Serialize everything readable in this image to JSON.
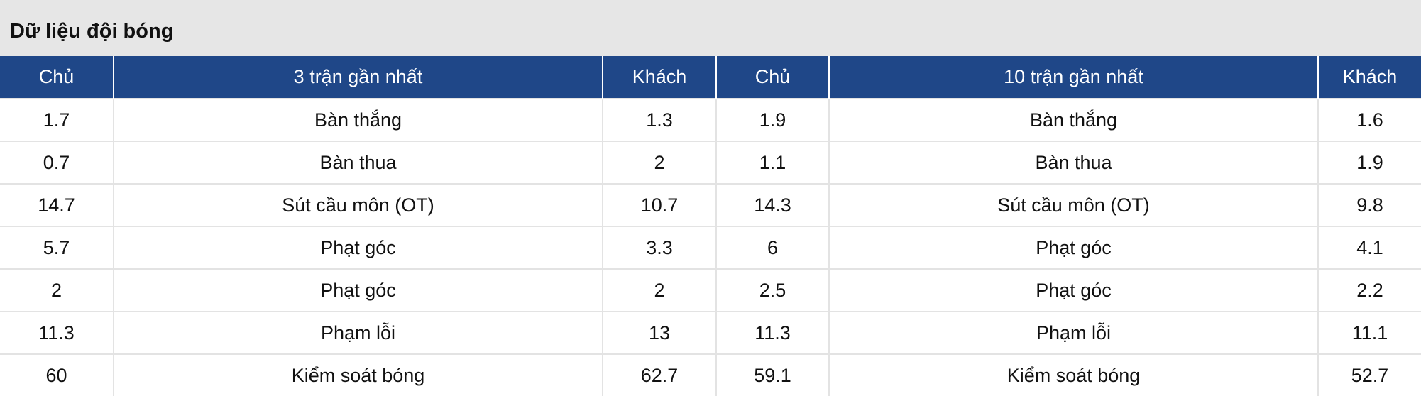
{
  "title": "Dữ liệu đội bóng",
  "headers": [
    "Chủ",
    "3 trận gần nhất",
    "Khách",
    "Chủ",
    "10 trận gần nhất",
    "Khách"
  ],
  "rows": [
    [
      "1.7",
      "Bàn thắng",
      "1.3",
      "1.9",
      "Bàn thắng",
      "1.6"
    ],
    [
      "0.7",
      "Bàn thua",
      "2",
      "1.1",
      "Bàn thua",
      "1.9"
    ],
    [
      "14.7",
      "Sút cầu môn (OT)",
      "10.7",
      "14.3",
      "Sút cầu môn (OT)",
      "9.8"
    ],
    [
      "5.7",
      "Phạt góc",
      "3.3",
      "6",
      "Phạt góc",
      "4.1"
    ],
    [
      "2",
      "Phạt góc",
      "2",
      "2.5",
      "Phạt góc",
      "2.2"
    ],
    [
      "11.3",
      "Phạm lỗi",
      "13",
      "11.3",
      "Phạm lỗi",
      "11.1"
    ],
    [
      "60",
      "Kiểm soát bóng",
      "62.7",
      "59.1",
      "Kiểm soát bóng",
      "52.7"
    ]
  ],
  "colors": {
    "header_bg": "#1f4788",
    "title_bg": "#e6e6e6"
  }
}
